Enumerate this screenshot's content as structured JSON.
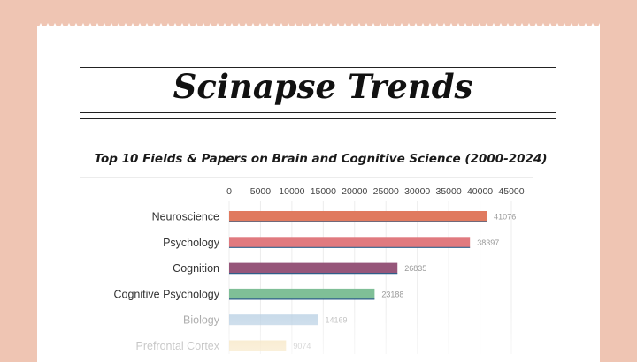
{
  "page": {
    "title": "Scinapse Trends"
  },
  "chart_data": {
    "type": "bar",
    "orientation": "horizontal",
    "title": "Top 10 Fields & Papers on Brain and Cognitive Science (2000-2024)",
    "xlabel": "",
    "ylabel": "",
    "xlim": [
      0,
      45000
    ],
    "ticks": [
      "0",
      "5000",
      "10000",
      "15000",
      "20000",
      "25000",
      "30000",
      "35000",
      "40000",
      "45000"
    ],
    "tick_values": [
      0,
      5000,
      10000,
      15000,
      20000,
      25000,
      30000,
      35000,
      40000,
      45000
    ],
    "grid": true,
    "categories": [
      "Neuroscience",
      "Psychology",
      "Cognition",
      "Cognitive Psychology",
      "Biology",
      "Prefrontal Cortex"
    ],
    "values": [
      41076,
      38397,
      26835,
      23188,
      14169,
      9074
    ],
    "data_labels": [
      "41076",
      "38397",
      "26835",
      "23188",
      "14169",
      "9074"
    ],
    "colors": [
      "#e07a5f",
      "#e07a7f",
      "#96567a",
      "#7fbf97",
      "#a9c6de",
      "#f2d59b"
    ]
  }
}
